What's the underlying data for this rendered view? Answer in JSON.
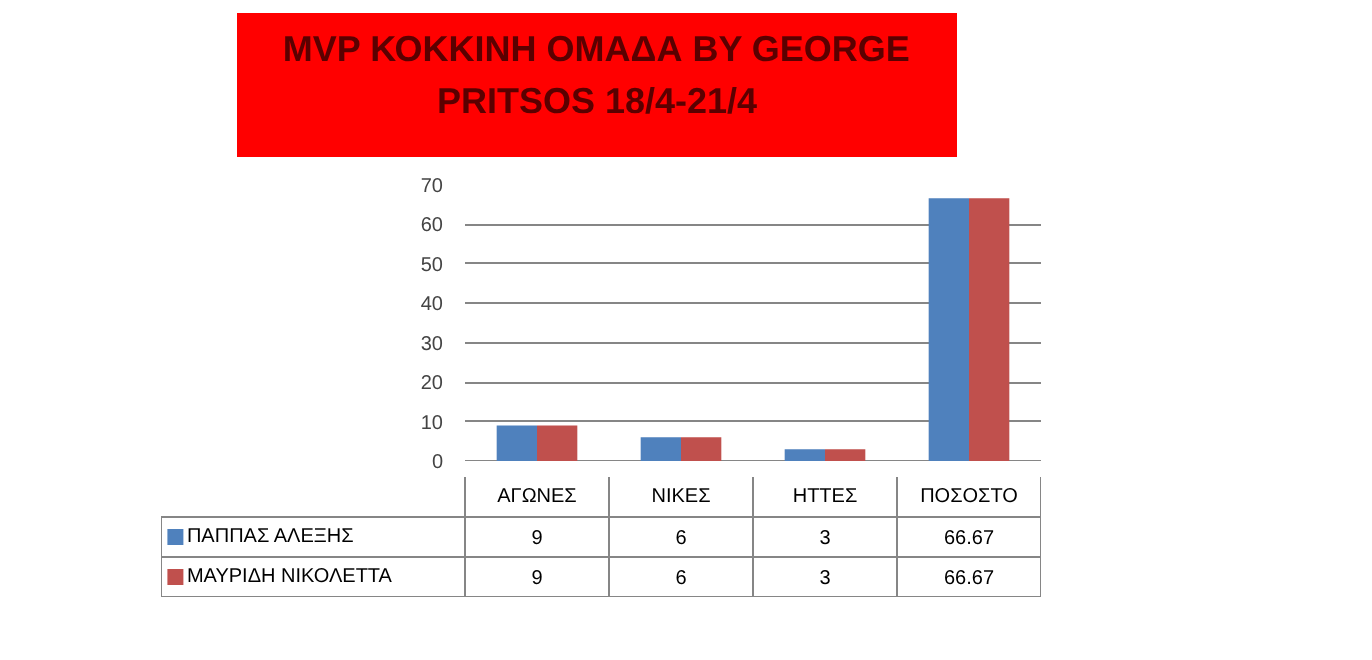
{
  "chart_data": {
    "type": "bar",
    "title": "MVP ΚΟΚΚΙΝΗ ΟΜΑΔΑ BY GEORGE PRITSOS 18/4-21/4",
    "categories": [
      "ΑΓΩΝΕΣ",
      "ΝΙΚΕΣ",
      "ΗΤΤΕΣ",
      "ΠΟΣΟΣΤΟ"
    ],
    "series": [
      {
        "name": "ΠΑΠΠΑΣ ΑΛΕΞΗΣ",
        "color": "#4f81bd",
        "values": [
          9,
          6,
          3,
          66.67
        ]
      },
      {
        "name": "ΜΑΥΡΙΔΗ ΝΙΚΟΛΕΤΤΑ",
        "color": "#c0504d",
        "values": [
          9,
          6,
          3,
          66.67
        ]
      }
    ],
    "ylim": [
      0,
      70
    ],
    "yticks": [
      0,
      10,
      20,
      30,
      40,
      50,
      60,
      70
    ],
    "grid": "y",
    "data_labels": true,
    "legend": "bottom"
  }
}
